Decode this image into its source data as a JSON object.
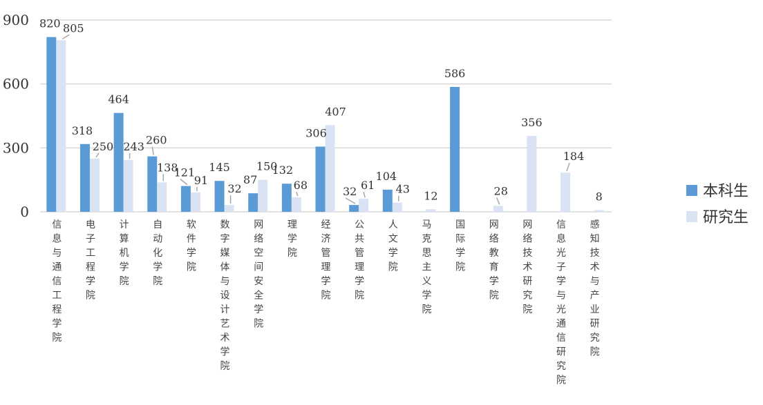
{
  "chart_data": {
    "type": "bar",
    "categories": [
      "信息与通信工程学院",
      "电子工程学院",
      "计算机学院",
      "自动化学院",
      "软件学院",
      "数字媒体与设计艺术学院",
      "网络空间安全学院",
      "理学院",
      "经济管理学院",
      "公共管理学院",
      "人文学院",
      "马克思主义学院",
      "国际学院",
      "网络教育学院",
      "网络技术研究院",
      "信息光子学与光通信研究院",
      "感知技术与产业研究院"
    ],
    "series": [
      {
        "name": "本科生",
        "color": "#5b9bd5",
        "values": [
          820,
          318,
          464,
          260,
          121,
          145,
          87,
          132,
          306,
          32,
          104,
          null,
          586,
          null,
          null,
          null,
          null
        ]
      },
      {
        "name": "研究生",
        "color": "#dae3f3",
        "values": [
          805,
          250,
          243,
          138,
          91,
          32,
          150,
          68,
          407,
          61,
          43,
          12,
          null,
          28,
          356,
          184,
          8
        ]
      }
    ],
    "ylim": [
      0,
      900
    ],
    "yticks": [
      "0",
      "300",
      "600",
      "900"
    ],
    "grid": true,
    "legend_position": "right"
  }
}
